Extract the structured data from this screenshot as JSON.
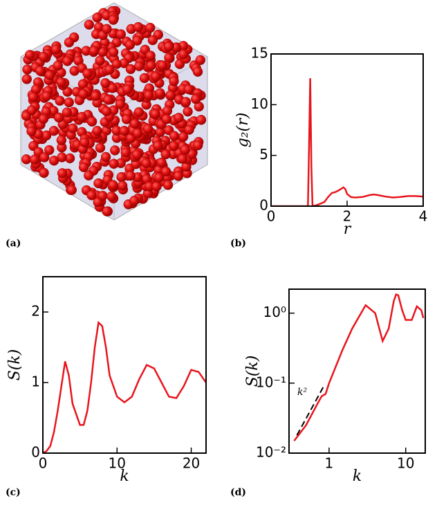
{
  "panel_labels": [
    "(a)",
    "(b)",
    "(c)",
    "(d)"
  ],
  "chart_data": [
    {
      "type": "line",
      "xlabel": "r",
      "ylabel": "g₂(r)",
      "xlim": [
        0,
        4
      ],
      "ylim": [
        0,
        15
      ],
      "xticks": [
        0,
        2,
        4
      ],
      "yticks": [
        0,
        5,
        10,
        15
      ],
      "series": [
        {
          "color": "#e8141c",
          "x": [
            0,
            0.97,
            1.0,
            1.03,
            1.06,
            1.09,
            1.2,
            1.4,
            1.5,
            1.6,
            1.7,
            1.8,
            1.9,
            1.95,
            2.0,
            2.1,
            2.2,
            2.4,
            2.6,
            2.7,
            2.8,
            3.0,
            3.2,
            3.4,
            3.6,
            3.8,
            4.0
          ],
          "values": [
            0,
            0,
            6,
            12.6,
            4,
            0,
            0.1,
            0.4,
            0.9,
            1.3,
            1.4,
            1.6,
            1.85,
            1.7,
            1.2,
            0.9,
            0.85,
            0.9,
            1.1,
            1.15,
            1.1,
            0.95,
            0.85,
            0.9,
            1.0,
            1.0,
            0.95
          ]
        }
      ]
    },
    {
      "type": "line",
      "xlabel": "k",
      "ylabel": "S(k)",
      "xlim": [
        0,
        22
      ],
      "ylim": [
        0,
        2.5
      ],
      "xticks": [
        0,
        10,
        20
      ],
      "yticks": [
        0,
        1,
        2
      ],
      "series": [
        {
          "color": "#e8141c",
          "x": [
            0,
            0.5,
            1,
            1.5,
            2,
            2.5,
            3,
            3.5,
            4,
            5,
            5.5,
            6,
            6.5,
            7,
            7.5,
            8,
            8.5,
            9,
            10,
            11,
            12,
            13,
            14,
            15,
            16,
            17,
            18,
            19,
            20,
            21,
            22
          ],
          "values": [
            0,
            0.03,
            0.1,
            0.3,
            0.6,
            0.95,
            1.3,
            1.1,
            0.7,
            0.4,
            0.4,
            0.6,
            1.0,
            1.5,
            1.85,
            1.8,
            1.5,
            1.1,
            0.8,
            0.72,
            0.8,
            1.05,
            1.25,
            1.2,
            1.0,
            0.8,
            0.78,
            0.95,
            1.18,
            1.15,
            1.0
          ]
        }
      ]
    },
    {
      "type": "line",
      "xlabel": "k",
      "ylabel": "S(k)",
      "log_x": true,
      "log_y": true,
      "annotation": "k²",
      "xlim": [
        0.3,
        18
      ],
      "ylim": [
        0.01,
        2.2
      ],
      "xticks": [
        1,
        10
      ],
      "yticks": [
        {
          "value": 0.01,
          "label": "10⁻²"
        },
        {
          "value": 0.1,
          "label": "10⁻¹"
        },
        {
          "value": 1,
          "label": "10⁰"
        }
      ],
      "series": [
        {
          "color": "#e8141c",
          "x": [
            0.35,
            0.5,
            0.7,
            0.8,
            0.9,
            1,
            1.5,
            2,
            3,
            4,
            5,
            6,
            7,
            7.5,
            8,
            9,
            10,
            12,
            14,
            16,
            17
          ],
          "values": [
            0.015,
            0.025,
            0.05,
            0.065,
            0.07,
            0.1,
            0.3,
            0.6,
            1.3,
            1.0,
            0.4,
            0.6,
            1.5,
            1.85,
            1.8,
            1.1,
            0.8,
            0.8,
            1.25,
            1.1,
            0.85
          ]
        },
        {
          "color": "#000000",
          "dashed": true,
          "x": [
            0.38,
            0.85
          ],
          "values": [
            0.018,
            0.09
          ]
        }
      ]
    }
  ]
}
